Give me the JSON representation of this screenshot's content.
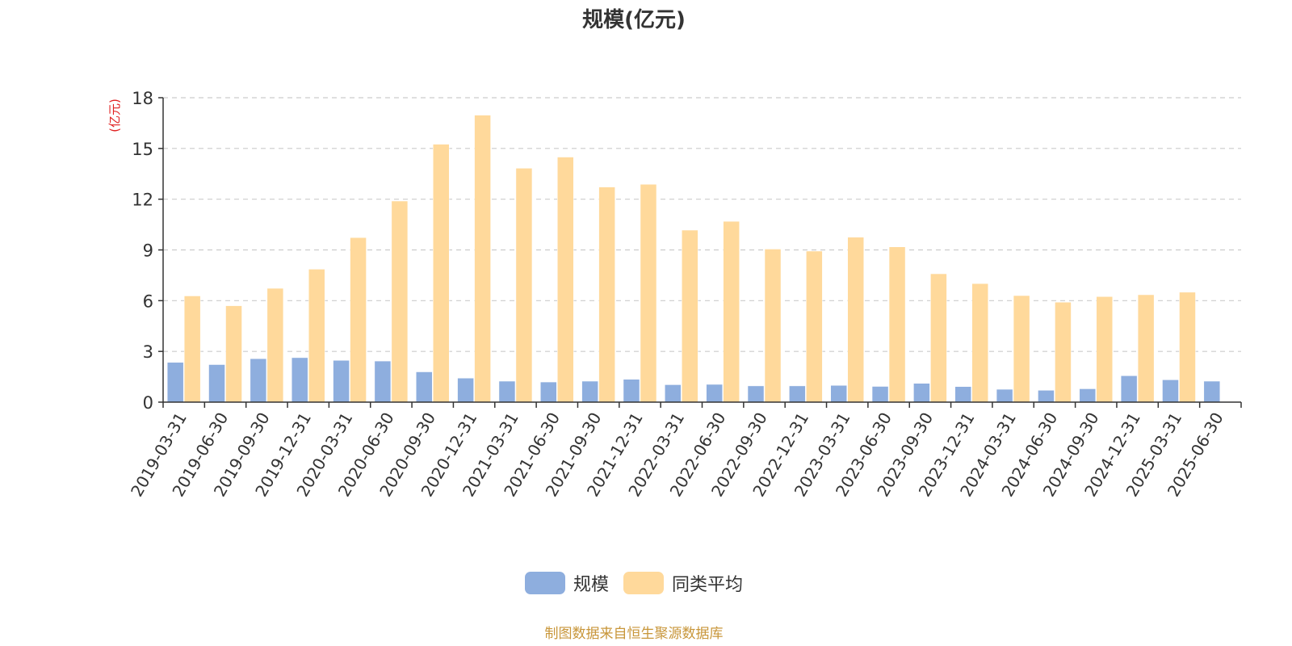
{
  "chart_data": {
    "type": "bar",
    "title": "规模(亿元)",
    "ylabel": "(亿元)",
    "ylim": [
      0,
      18
    ],
    "yticks": [
      0,
      3,
      6,
      9,
      12,
      15,
      18
    ],
    "grid": true,
    "legend_position": "bottom-center",
    "categories": [
      "2019-03-31",
      "2019-06-30",
      "2019-09-30",
      "2019-12-31",
      "2020-03-31",
      "2020-06-30",
      "2020-09-30",
      "2020-12-31",
      "2021-03-31",
      "2021-06-30",
      "2021-09-30",
      "2021-12-31",
      "2022-03-31",
      "2022-06-30",
      "2022-09-30",
      "2022-12-31",
      "2023-03-31",
      "2023-06-30",
      "2023-09-30",
      "2023-12-31",
      "2024-03-31",
      "2024-06-30",
      "2024-09-30",
      "2024-12-31",
      "2025-03-31",
      "2025-06-30"
    ],
    "series": [
      {
        "name": "规模",
        "color": "#8eaede",
        "values": [
          2.35,
          2.22,
          2.57,
          2.63,
          2.47,
          2.43,
          1.79,
          1.42,
          1.24,
          1.19,
          1.24,
          1.35,
          1.03,
          1.05,
          0.96,
          0.96,
          0.99,
          0.93,
          1.11,
          0.92,
          0.76,
          0.7,
          0.79,
          1.56,
          1.32,
          1.24
        ]
      },
      {
        "name": "同类平均",
        "color": "#ffd99b",
        "values": [
          6.28,
          5.7,
          6.73,
          7.86,
          9.73,
          11.89,
          15.25,
          16.97,
          13.83,
          14.49,
          12.72,
          12.88,
          10.17,
          10.69,
          9.05,
          8.93,
          9.75,
          9.18,
          7.59,
          7.01,
          6.3,
          5.91,
          6.24,
          6.35,
          6.5,
          null
        ]
      }
    ],
    "source_note": "制图数据来自恒生聚源数据库"
  }
}
